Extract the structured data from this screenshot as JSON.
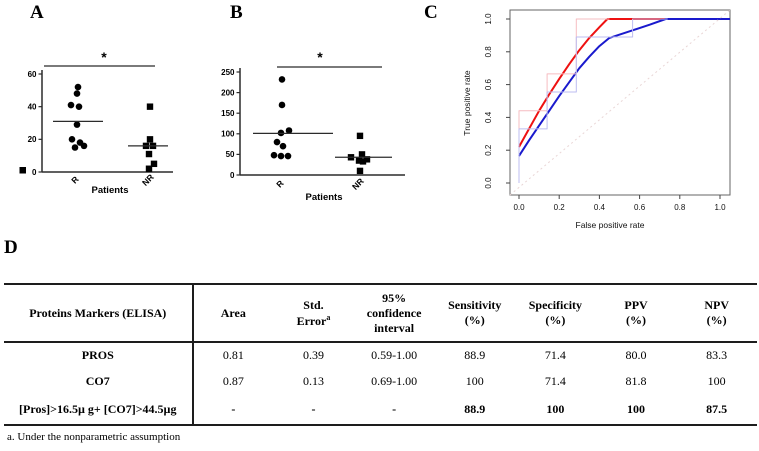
{
  "figure": {
    "panels": {
      "a": {
        "label": "A"
      },
      "b": {
        "label": "B"
      },
      "c": {
        "label": "C"
      },
      "d": {
        "label": "D"
      }
    }
  },
  "chart_data": [
    {
      "id": "A",
      "type": "scatter",
      "xlabel": "Patients",
      "categories": [
        "R",
        "NR"
      ],
      "ylim": [
        0,
        60
      ],
      "yticks": [
        0,
        20,
        40,
        60
      ],
      "significance": "*",
      "origin_square": true,
      "series": [
        {
          "name": "R",
          "marker": "circle",
          "median": 31,
          "points": [
            [
              1,
              52
            ],
            [
              0,
              48
            ],
            [
              -6,
              41
            ],
            [
              2,
              40
            ],
            [
              0,
              29
            ],
            [
              -5,
              20
            ],
            [
              3,
              18
            ],
            [
              -2,
              15
            ],
            [
              7,
              16
            ]
          ]
        },
        {
          "name": "NR",
          "marker": "square",
          "median": 16,
          "points": [
            [
              0,
              40
            ],
            [
              0,
              20
            ],
            [
              -4,
              16
            ],
            [
              3,
              16
            ],
            [
              -1,
              11
            ],
            [
              4,
              5
            ],
            [
              -1,
              2
            ]
          ]
        }
      ]
    },
    {
      "id": "B",
      "type": "scatter",
      "xlabel": "Patients",
      "categories": [
        "R",
        "NR"
      ],
      "ylim": [
        0,
        250
      ],
      "yticks": [
        0,
        50,
        100,
        150,
        200,
        250
      ],
      "significance": "*",
      "origin_square": false,
      "series": [
        {
          "name": "R",
          "marker": "circle",
          "median": 101,
          "points": [
            [
              0,
              232
            ],
            [
              0,
              170
            ],
            [
              7,
              108
            ],
            [
              -1,
              102
            ],
            [
              -5,
              80
            ],
            [
              1,
              70
            ],
            [
              -8,
              48
            ],
            [
              -1,
              46
            ],
            [
              6,
              46
            ]
          ]
        },
        {
          "name": "NR",
          "marker": "square",
          "median": 43,
          "points": [
            [
              0,
              95
            ],
            [
              2,
              50
            ],
            [
              -9,
              43
            ],
            [
              7,
              38
            ],
            [
              -1,
              35
            ],
            [
              3,
              33
            ],
            [
              0,
              10
            ]
          ]
        }
      ]
    },
    {
      "id": "C",
      "type": "line",
      "xlabel": "False positive rate",
      "ylabel": "True positive rate",
      "xlim": [
        0,
        1
      ],
      "ylim": [
        0,
        1
      ],
      "xtick_labels": [
        "0.0",
        "0.2",
        "0.4",
        "0.6",
        "0.8",
        "1.0"
      ],
      "ytick_labels": [
        "0.0",
        "0.2",
        "0.4",
        "0.6",
        "0.8",
        "1.0"
      ],
      "xticks": [
        0,
        0.2,
        0.4,
        0.6,
        0.8,
        1.0
      ],
      "yticks": [
        0,
        0.2,
        0.4,
        0.6,
        0.8,
        1.0
      ],
      "grid": false,
      "legend": "none",
      "series": [
        {
          "name": "smoothed-roc-pros",
          "color": "#ee1111",
          "width": 2,
          "extend_to_edge": true,
          "points": [
            [
              0,
              0.22
            ],
            [
              0.05,
              0.33
            ],
            [
              0.1,
              0.44
            ],
            [
              0.15,
              0.54
            ],
            [
              0.2,
              0.635
            ],
            [
              0.25,
              0.725
            ],
            [
              0.3,
              0.81
            ],
            [
              0.35,
              0.885
            ],
            [
              0.4,
              0.95
            ],
            [
              0.44,
              1
            ],
            [
              1,
              1
            ]
          ]
        },
        {
          "name": "smoothed-roc-co7",
          "color": "#1a1acd",
          "width": 2,
          "extend_to_edge": true,
          "points": [
            [
              0,
              0.165
            ],
            [
              0.05,
              0.26
            ],
            [
              0.1,
              0.35
            ],
            [
              0.15,
              0.44
            ],
            [
              0.2,
              0.53
            ],
            [
              0.25,
              0.615
            ],
            [
              0.3,
              0.7
            ],
            [
              0.35,
              0.77
            ],
            [
              0.4,
              0.835
            ],
            [
              0.45,
              0.885
            ],
            [
              0.55,
              0.925
            ],
            [
              0.65,
              0.965
            ],
            [
              0.73,
              1
            ],
            [
              1,
              1
            ]
          ]
        },
        {
          "name": "empirical-roc-pros",
          "color": "#f6bcc1",
          "width": 1,
          "points": [
            [
              0,
              0
            ],
            [
              0,
              0.44
            ],
            [
              0.14,
              0.44
            ],
            [
              0.14,
              0.665
            ],
            [
              0.285,
              0.665
            ],
            [
              0.285,
              1
            ],
            [
              0.45,
              1
            ]
          ]
        },
        {
          "name": "empirical-roc-co7",
          "color": "#bdbdf0",
          "width": 1,
          "points": [
            [
              0,
              0
            ],
            [
              0,
              0.33
            ],
            [
              0.14,
              0.33
            ],
            [
              0.14,
              0.555
            ],
            [
              0.285,
              0.555
            ],
            [
              0.285,
              0.89
            ],
            [
              0.565,
              0.89
            ],
            [
              0.565,
              1
            ],
            [
              0.74,
              1
            ]
          ]
        },
        {
          "name": "chance-diagonal",
          "color": "#e9d6d6",
          "width": 1,
          "dash": "2,3",
          "span_box": true,
          "points": [
            [
              0,
              0
            ],
            [
              1,
              1
            ]
          ]
        }
      ]
    }
  ],
  "table": {
    "col1_header": "Proteins Markers (ELISA)",
    "headers": [
      {
        "text": "Area"
      },
      {
        "text": "Std.\nError",
        "sup": "a"
      },
      {
        "text": "95%\nconfidence\ninterval"
      },
      {
        "text": "Sensitivity\n(%)"
      },
      {
        "text": "Specificity\n(%)"
      },
      {
        "text": "PPV\n(%)"
      },
      {
        "text": "NPV\n(%)"
      }
    ],
    "rows": [
      {
        "label": "PROS",
        "bold_values": false,
        "values": [
          "0.81",
          "0.39",
          "0.59-1.00",
          "88.9",
          "71.4",
          "80.0",
          "83.3"
        ]
      },
      {
        "label": "CO7",
        "bold_values": false,
        "values": [
          "0.87",
          "0.13",
          "0.69-1.00",
          "100",
          "71.4",
          "81.8",
          "100"
        ]
      },
      {
        "label": "[Pros]>16.5µ g+ [CO7]>44.5µg",
        "bold_values": true,
        "values": [
          "-",
          "-",
          "-",
          "88.9",
          "100",
          "100",
          "87.5"
        ]
      }
    ],
    "footnote_marker": "a.",
    "footnote": "Under the nonparametric assumption"
  },
  "colors": {
    "marker": "#000000",
    "roc_red": "#ee1111",
    "roc_blue": "#1a1acd",
    "roc_red_faint": "#f6bcc1",
    "roc_blue_faint": "#bdbdf0",
    "diagonal": "#e9d6d6"
  }
}
